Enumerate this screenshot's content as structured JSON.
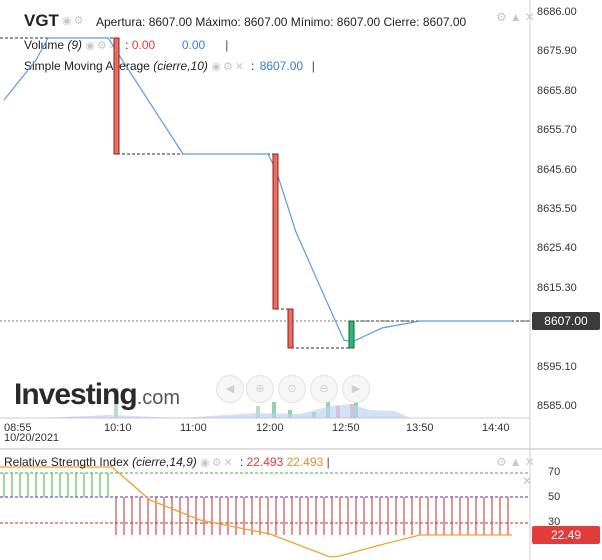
{
  "header": {
    "symbol": "VGT",
    "ohlc_text": "Apertura: 8607.00 Máximo: 8607.00 Mínimo: 8607.00 Cierre: 8607.00"
  },
  "volume": {
    "name": "Volume",
    "param": "(9)",
    "value_red": "0.00",
    "value_blue": "0.00"
  },
  "sma": {
    "name": "Simple Moving Average",
    "param": "(cierre,10)",
    "value": "8607.00"
  },
  "price_axis": {
    "ticks": [
      "8686.00",
      "8675.90",
      "8665.80",
      "8655.70",
      "8645.60",
      "8635.50",
      "8625.40",
      "8615.30",
      "8595.10",
      "8585.00"
    ],
    "current_price": "8607.00"
  },
  "time_axis": {
    "ticks": [
      "08:55",
      "10:10",
      "11:00",
      "12:00",
      "12:50",
      "13:50",
      "14:40"
    ],
    "date": "10/20/2021"
  },
  "rsi": {
    "name": "Relative Strength Index",
    "param": "(cierre,14,9)",
    "value_red": "22.493",
    "value_orange": "22.493",
    "axis_ticks": [
      "70",
      "50",
      "30"
    ],
    "current_value": "22.49"
  },
  "logo": {
    "brand": "Investing",
    "suffix": ".com"
  },
  "icons": {
    "eye": "eye-icon",
    "settings": "gear-icon",
    "close": "close-icon",
    "nav": [
      "rewind-icon",
      "zoom-in-icon",
      "zoom-reset-icon",
      "zoom-out-icon",
      "forward-icon"
    ]
  },
  "chart_data": {
    "type": "line",
    "x": [
      "08:55",
      "10:10",
      "11:00",
      "12:00",
      "12:50",
      "13:50",
      "14:40"
    ],
    "candles": [
      {
        "open": 8680,
        "close": 8648
      },
      {
        "open": 8649,
        "close": 8611
      },
      {
        "open": 8611,
        "close": 8604
      },
      {
        "open": 8604,
        "close": 8608
      }
    ],
    "sma": [
      8664,
      8680,
      8680,
      8648,
      8648,
      8648,
      8605,
      8607,
      8607,
      8607
    ],
    "rsi_levels": [
      70,
      50,
      30
    ],
    "ylim": [
      8580,
      8690
    ],
    "rsi_ylim": [
      15,
      80
    ]
  }
}
